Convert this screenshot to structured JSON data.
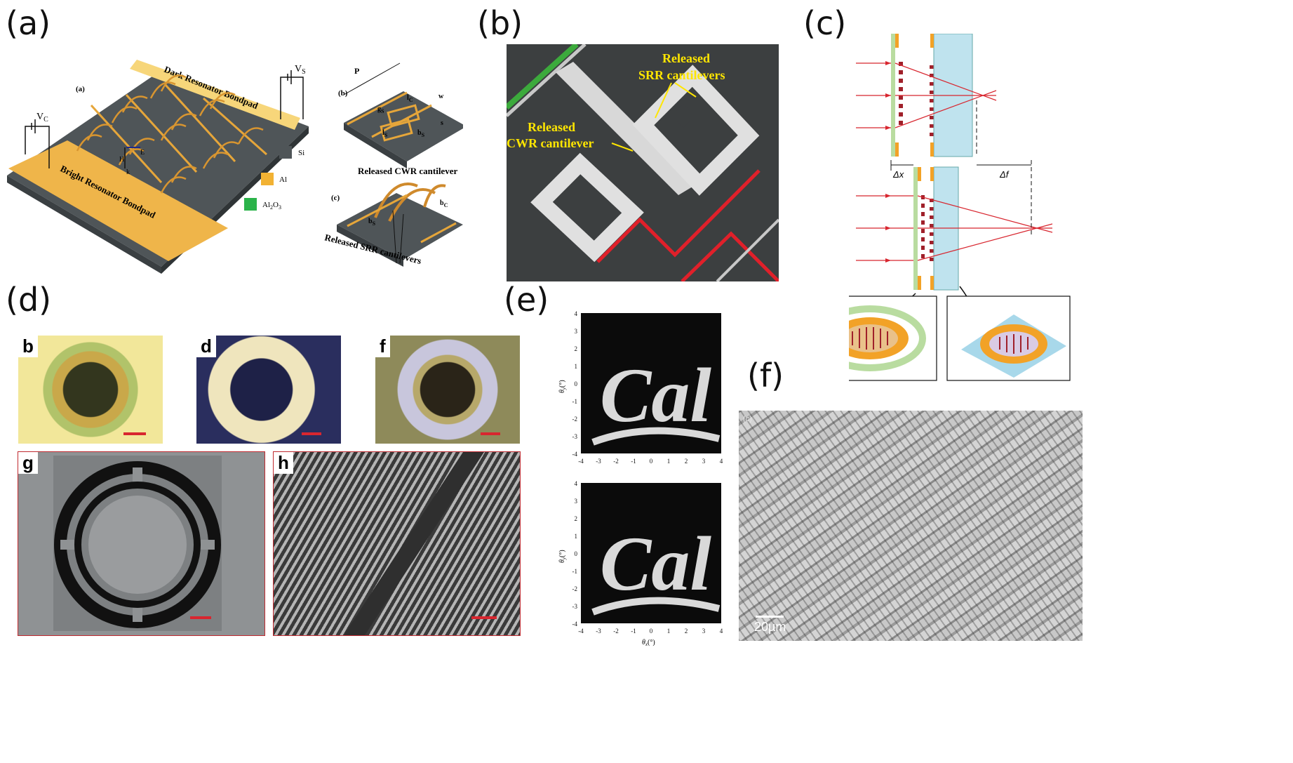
{
  "panels": {
    "a": "(a)",
    "b": "(b)",
    "c": "(c)",
    "d": "(d)",
    "e": "(e)",
    "f": "(f)"
  },
  "a": {
    "sub_a": "(a)",
    "sub_b": "(b)",
    "sub_c": "(c)",
    "dark_bondpad": "Dark Resonator Bondpad",
    "bright_bondpad": "Bright Resonator Bondpad",
    "vc": "V",
    "vc_sub": "C",
    "vs": "V",
    "vs_sub": "S",
    "legend_si": "Si",
    "legend_al": "Al",
    "legend_al2o3": "Al",
    "legend_al2o3_sub1": "2",
    "legend_al2o3_o": "O",
    "legend_al2o3_sub2": "3",
    "field_h": "H",
    "field_e": "E",
    "field_k": "k",
    "dim_p": "P",
    "dim_w": "w",
    "dim_lc": "l",
    "dim_lc_sub": "C",
    "dim_gs": "g",
    "dim_gs_sub": "S",
    "dim_s": "s",
    "dim_ls": "l",
    "dim_ls_sub": "S",
    "dim_bs": "b",
    "dim_bs_sub": "S",
    "cwr_label": "Released CWR cantilever",
    "srr_label": "Released SRR cantilevers",
    "bc": "b",
    "bc_sub": "C",
    "bs2": "b",
    "bs2_sub": "S",
    "colors": {
      "si": "#5d6366",
      "al": "#f2b233",
      "al2o3": "#2bb34a",
      "pad": "#f5c860"
    }
  },
  "b": {
    "srr_line1": "Released",
    "srr_line2": "SRR cantilevers",
    "cwr_line1": "Released",
    "cwr_line2": "CWR cantilever",
    "colors": {
      "label": "#ffe600",
      "red": "#e0202a",
      "green": "#3caa3c"
    }
  },
  "c": {
    "dx": "Δx",
    "df": "Δf",
    "colors": {
      "ray": "#d8262f",
      "plate": "#bfe3ee",
      "film": "#b9dca0",
      "pad": "#f2a227",
      "pillar": "#a0202a"
    }
  },
  "d": {
    "b": "b",
    "d": "d",
    "f": "f",
    "g": "g",
    "h": "h",
    "colors": {
      "scale": "#d8262f",
      "frame": "#c0292f"
    }
  },
  "e": {
    "top": {
      "yticks": [
        "4",
        "3",
        "2",
        "1",
        "0",
        "-1",
        "-2",
        "-3",
        "-4"
      ],
      "xticks": [
        "-4",
        "-3",
        "-2",
        "-1",
        "0",
        "1",
        "2",
        "3",
        "4"
      ],
      "ylabel": "θ",
      "ylabel_sub": "y",
      "ylabel_unit": "(°)",
      "image_text": "Cal"
    },
    "bottom": {
      "yticks": [
        "4",
        "3",
        "2",
        "1",
        "0",
        "-1",
        "-2",
        "-3",
        "-4"
      ],
      "xticks": [
        "-4",
        "-3",
        "-2",
        "-1",
        "0",
        "1",
        "2",
        "3",
        "4"
      ],
      "ylabel": "θ",
      "ylabel_sub": "y",
      "ylabel_unit": "(°)",
      "xlabel": "θ",
      "xlabel_sub": "x",
      "xlabel_unit": "(°)",
      "image_text": "Cal"
    }
  },
  "f": {
    "corner": "(c)",
    "scale": "20µm"
  }
}
